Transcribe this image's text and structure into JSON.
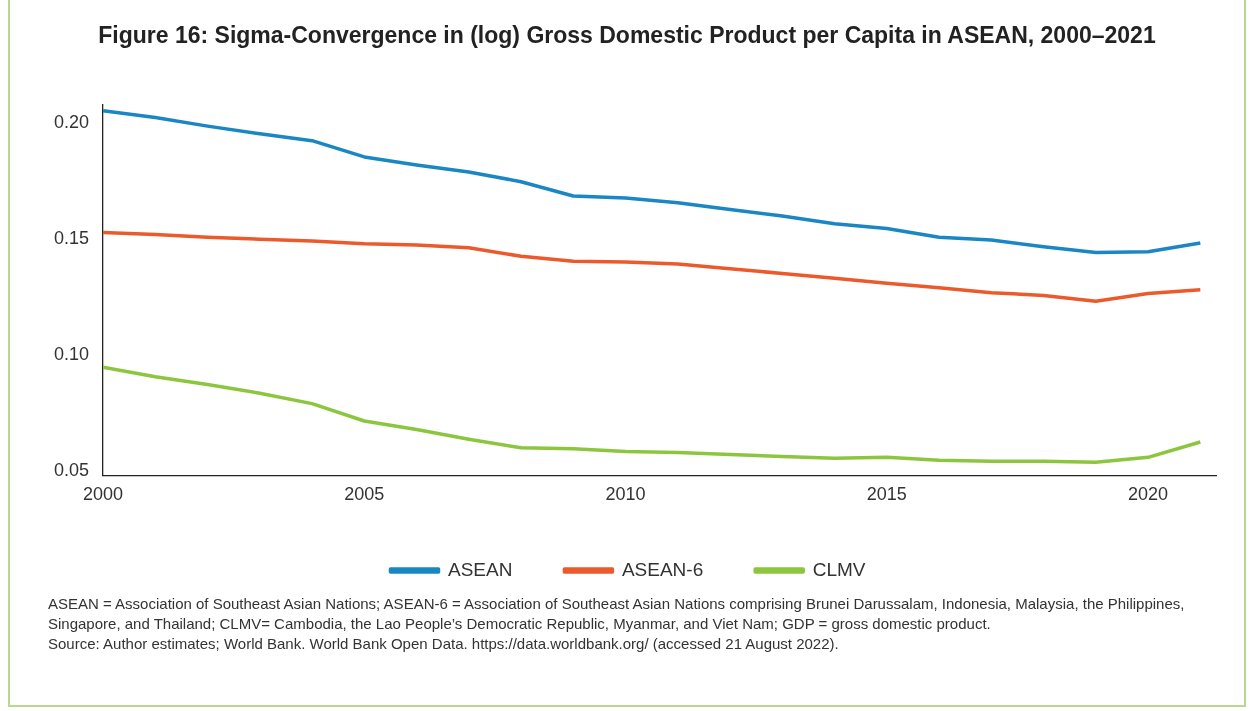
{
  "chart_data": {
    "type": "line",
    "title": "Figure 16: Sigma-Convergence in (log) Gross Domestic Product per Capita in ASEAN, 2000–2021",
    "x": [
      2000,
      2001,
      2002,
      2003,
      2004,
      2005,
      2006,
      2007,
      2008,
      2009,
      2010,
      2011,
      2012,
      2013,
      2014,
      2015,
      2016,
      2017,
      2018,
      2019,
      2020,
      2021
    ],
    "series": [
      {
        "name": "ASEAN",
        "color": "#1a87c4",
        "values": [
          0.2054,
          0.2025,
          0.1988,
          0.1955,
          0.1925,
          0.1855,
          0.182,
          0.179,
          0.1748,
          0.1686,
          0.1678,
          0.1657,
          0.1628,
          0.16,
          0.1566,
          0.1546,
          0.1508,
          0.1496,
          0.1467,
          0.1442,
          0.1446,
          0.1483
        ]
      },
      {
        "name": "ASEAN-6",
        "color": "#ec5a2c",
        "values": [
          0.1529,
          0.152,
          0.1508,
          0.15,
          0.1492,
          0.148,
          0.1475,
          0.1463,
          0.1426,
          0.1405,
          0.1401,
          0.1393,
          0.1372,
          0.1352,
          0.1331,
          0.131,
          0.129,
          0.1269,
          0.1257,
          0.1232,
          0.1265,
          0.1281
        ]
      },
      {
        "name": "CLMV",
        "color": "#8cc63f",
        "values": [
          0.0947,
          0.0906,
          0.0872,
          0.0835,
          0.079,
          0.0715,
          0.0678,
          0.0636,
          0.0599,
          0.0595,
          0.0583,
          0.0579,
          0.057,
          0.0562,
          0.0554,
          0.0558,
          0.0545,
          0.0541,
          0.0541,
          0.0537,
          0.0558,
          0.0624
        ]
      }
    ],
    "xlim": [
      2000,
      2021.3
    ],
    "xticks": [
      2000,
      2005,
      2010,
      2015,
      2020
    ],
    "ylim": [
      0.048,
      0.208
    ],
    "yticks": [
      {
        "value": 0.05,
        "label": "0.05"
      },
      {
        "value": 0.1,
        "label": "0.10"
      },
      {
        "value": 0.15,
        "label": "0.15"
      },
      {
        "value": 0.2,
        "label": "0.20"
      }
    ],
    "grid": false,
    "legend": "bottom",
    "marker": "none",
    "line_style": "solid",
    "annotations": [
      "ASEAN = Association of Southeast Asian Nations; ASEAN-6 = Association of Southeast Asian Nations comprising Brunei Darussalam, Indonesia, Malaysia, the Philippines, Singapore, and Thailand; CLMV= Cambodia, the Lao People’s Democratic Republic, Myanmar, and Viet Nam; GDP = gross domestic product.",
      "Source: Author estimates; World Bank. World Bank Open Data. https://data.worldbank.org/ (accessed 21 August 2022)."
    ]
  }
}
